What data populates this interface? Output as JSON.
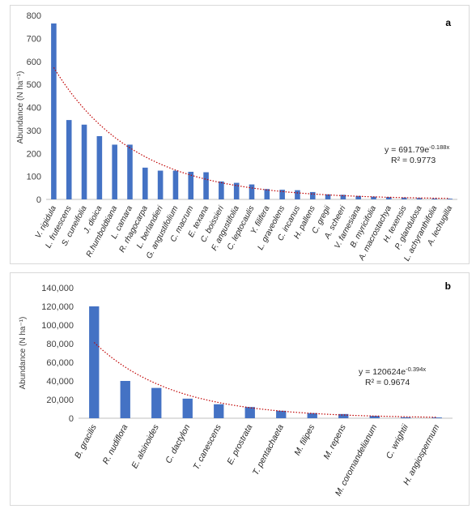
{
  "chart_data": [
    {
      "type": "bar",
      "panel_label": "a",
      "ylabel": "Abundance (N ha⁻¹)",
      "ylim": [
        0,
        800
      ],
      "yticks": [
        0,
        100,
        200,
        300,
        400,
        500,
        600,
        700,
        800
      ],
      "ytick_labels": [
        "0",
        "100",
        "200",
        "300",
        "400",
        "500",
        "600",
        "700",
        "800"
      ],
      "bar_color": "#4472c4",
      "trend_color": "#c00000",
      "trend": {
        "type": "exponential",
        "a": 691.79,
        "b": -0.188
      },
      "equation": "y = 691.79e",
      "equation_exp": "-0.188x",
      "r2": "R² = 0.9773",
      "categories": [
        "V. rigidula",
        "L. frutescens",
        "S. cuneifolia",
        "J. dioica",
        "R.humboldtiana",
        "L. camara",
        "R. rhagocarpa",
        "L. berlandieri",
        "G. angustifolium",
        "C. macrum",
        "E. texana",
        "C. boissieri",
        "F. angustifolia",
        "C. leptocaulis",
        "Y. filifera",
        "L. graveolens",
        "C. incanus",
        "H. pallens",
        "C. gregii",
        "A. scheeri",
        "V. farnesiana",
        "B. myricifolia",
        "A. macrostachya",
        "H. texensis",
        "P. glandulosa",
        "L. achyranthifolia",
        "A. lechugilla"
      ],
      "values": [
        765,
        345,
        325,
        275,
        238,
        238,
        138,
        125,
        125,
        120,
        118,
        78,
        72,
        65,
        45,
        42,
        40,
        32,
        22,
        20,
        15,
        12,
        10,
        8,
        6,
        4,
        3
      ]
    },
    {
      "type": "bar",
      "panel_label": "b",
      "ylabel": "Abundance (N ha⁻¹)",
      "ylim": [
        0,
        140000
      ],
      "yticks": [
        0,
        20000,
        40000,
        60000,
        80000,
        100000,
        120000,
        140000
      ],
      "ytick_labels": [
        "0",
        "20,000",
        "40,000",
        "60,000",
        "80,000",
        "100,000",
        "120,000",
        "140,000"
      ],
      "bar_color": "#4472c4",
      "trend_color": "#c00000",
      "trend": {
        "type": "exponential",
        "a": 120624,
        "b": -0.394
      },
      "equation": "y = 120624e",
      "equation_exp": "-0.394x",
      "r2": "R² = 0.9674",
      "categories": [
        "B. gracilis",
        "R. nudiflora",
        "E. alsinoides",
        "C. dactylon",
        "T. canescens",
        "E. prostrata",
        "T. pentachaeta",
        "M. filipes",
        "M. repens",
        "M. coromandelianum",
        "C. wrightii",
        "H. angiospermum"
      ],
      "values": [
        120000,
        40000,
        32500,
        21000,
        15000,
        12000,
        8000,
        5500,
        4500,
        2500,
        1000,
        800
      ]
    }
  ]
}
